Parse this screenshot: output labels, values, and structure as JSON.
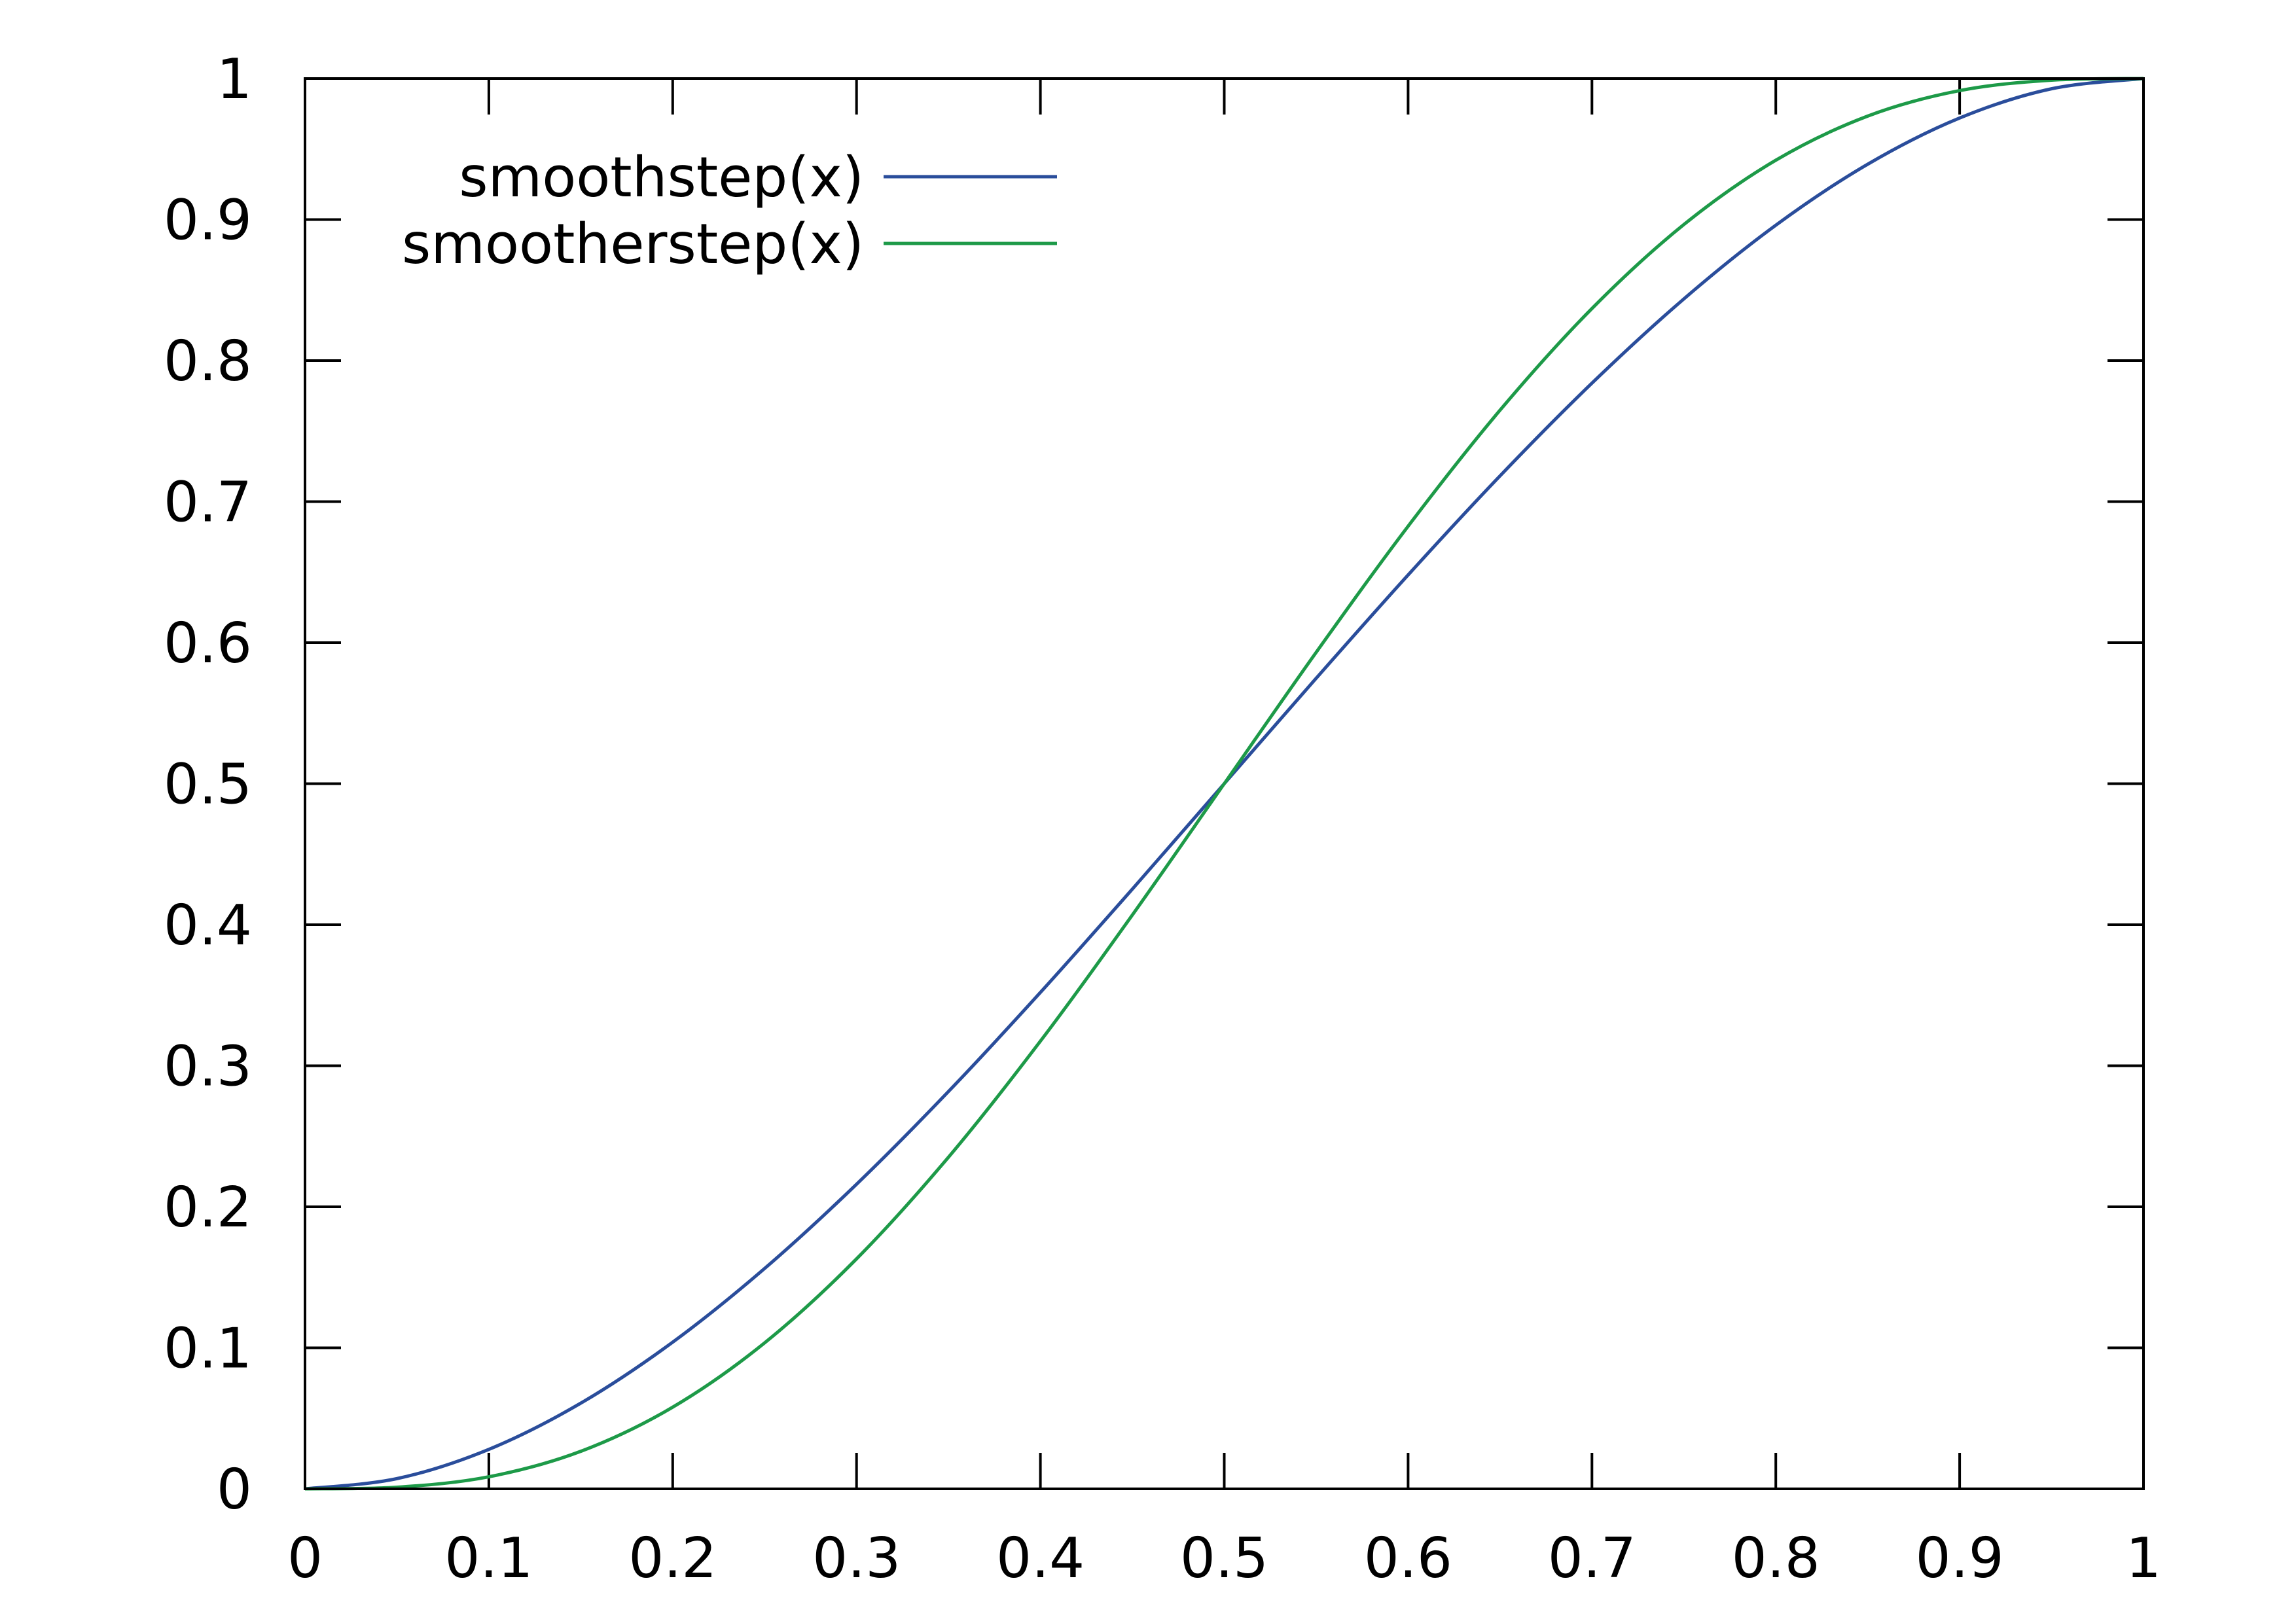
{
  "chart_data": {
    "type": "line",
    "title": "",
    "xlabel": "",
    "ylabel": "",
    "xlim": [
      0,
      1
    ],
    "ylim": [
      0,
      1
    ],
    "grid": false,
    "legend_placement": "top-left",
    "x_ticks": [
      "0",
      "0.1",
      "0.2",
      "0.3",
      "0.4",
      "0.5",
      "0.6",
      "0.7",
      "0.8",
      "0.9",
      "1"
    ],
    "y_ticks": [
      "0",
      "0.1",
      "0.2",
      "0.3",
      "0.4",
      "0.5",
      "0.6",
      "0.7",
      "0.8",
      "0.9",
      "1"
    ],
    "x": [
      0,
      0.05,
      0.1,
      0.15,
      0.2,
      0.25,
      0.3,
      0.35,
      0.4,
      0.45,
      0.5,
      0.55,
      0.6,
      0.65,
      0.7,
      0.75,
      0.8,
      0.85,
      0.9,
      0.95,
      1
    ],
    "series": [
      {
        "name": "smoothstep(x)",
        "color": "#2a4d9b",
        "values": [
          0,
          0.00725,
          0.028,
          0.06075,
          0.104,
          0.15625,
          0.216,
          0.28175,
          0.352,
          0.42525,
          0.5,
          0.57475,
          0.648,
          0.71825,
          0.784,
          0.84375,
          0.896,
          0.93925,
          0.972,
          0.99275,
          1
        ]
      },
      {
        "name": "smootherstep(x)",
        "color": "#1d9a48",
        "values": [
          0,
          0.001158,
          0.00856,
          0.026611,
          0.05792,
          0.103516,
          0.16308,
          0.235169,
          0.31744,
          0.406873,
          0.5,
          0.593127,
          0.68256,
          0.764831,
          0.83692,
          0.896484,
          0.94208,
          0.973389,
          0.99144,
          0.998842,
          1
        ]
      }
    ]
  }
}
